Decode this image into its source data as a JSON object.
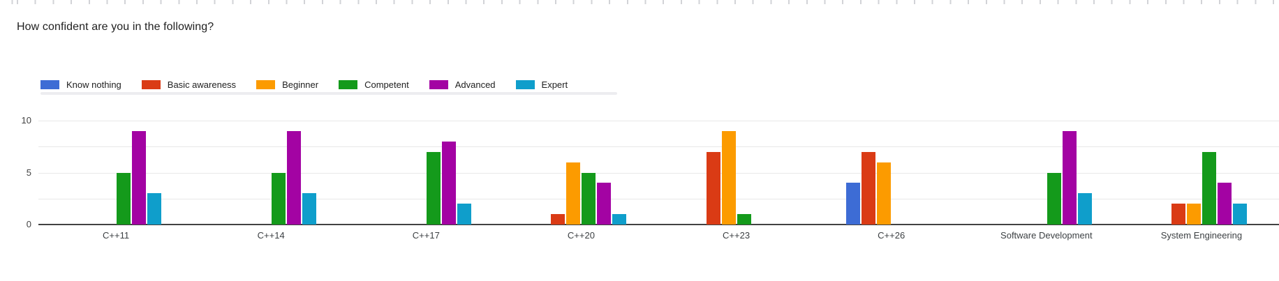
{
  "title": "How confident are you in the following?",
  "chart_data": {
    "type": "bar",
    "title": "How confident are you in the following?",
    "categories": [
      "C++11",
      "C++14",
      "C++17",
      "C++20",
      "C++23",
      "C++26",
      "Software Development",
      "System Engineering"
    ],
    "series": [
      {
        "name": "Know nothing",
        "color": "#3d6cd5",
        "values": [
          0,
          0,
          0,
          0,
          0,
          4,
          0,
          0
        ]
      },
      {
        "name": "Basic awareness",
        "color": "#da3b15",
        "values": [
          0,
          0,
          0,
          1,
          7,
          7,
          0,
          2
        ]
      },
      {
        "name": "Beginner",
        "color": "#fc9b00",
        "values": [
          0,
          0,
          0,
          6,
          9,
          6,
          0,
          2
        ]
      },
      {
        "name": "Competent",
        "color": "#149a1b",
        "values": [
          5,
          5,
          7,
          5,
          1,
          0,
          5,
          7
        ]
      },
      {
        "name": "Advanced",
        "color": "#a303a3",
        "values": [
          9,
          9,
          8,
          4,
          0,
          0,
          9,
          4
        ]
      },
      {
        "name": "Expert",
        "color": "#0f9ecb",
        "values": [
          3,
          3,
          2,
          1,
          0,
          0,
          3,
          2
        ]
      }
    ],
    "ylim": [
      0,
      10
    ],
    "yticks": [
      0,
      5,
      10
    ],
    "gridline_values": [
      2.5,
      5,
      7.5,
      10
    ],
    "legend_position": "top",
    "grid": true
  },
  "colors": {
    "title_text": "#212121",
    "axis_text": "#424242",
    "gridline": "#e8e8e8",
    "baseline": "#424242",
    "ruler_tick": "#d2d3d7"
  }
}
